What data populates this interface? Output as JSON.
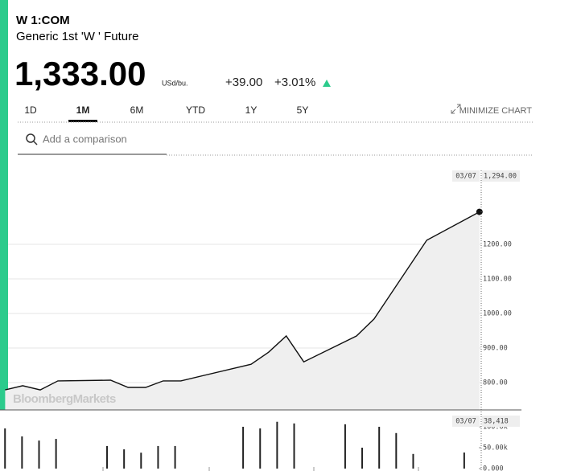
{
  "header": {
    "ticker": "W 1:COM",
    "name": "Generic 1st 'W ' Future",
    "price": "1,333.00",
    "unit": "USd/bu.",
    "change": "+39.00",
    "change_pct": "+3.01%"
  },
  "tabs": [
    "1D",
    "1M",
    "6M",
    "YTD",
    "1Y",
    "5Y"
  ],
  "active_tab": "1M",
  "minimize": "MINIMIZE CHART",
  "search_placeholder": "Add a comparison",
  "watermark": "BloombergMarkets",
  "chart_data": [
    {
      "type": "line",
      "color": "#111111",
      "fill": "#efefef",
      "grid": true,
      "x": [
        0,
        1,
        2,
        3,
        6,
        7,
        8,
        9,
        10,
        14,
        15,
        16,
        17,
        20,
        21,
        24,
        27
      ],
      "values": [
        779,
        791,
        779,
        805,
        807,
        786,
        786,
        805,
        805,
        853,
        888,
        935,
        860,
        935,
        984,
        1212,
        1294
      ],
      "xlim": [
        -0.2,
        27.1
      ],
      "ylim": [
        721,
        1414
      ],
      "yticks": [
        {
          "value": 800,
          "label": "800.00"
        },
        {
          "value": 900,
          "label": "900.00"
        },
        {
          "value": 1000,
          "label": "1000.00"
        },
        {
          "value": 1100,
          "label": "1100.00"
        },
        {
          "value": 1200,
          "label": "1200.00"
        }
      ],
      "cursor_date": "03/07",
      "cursor_label": "1,294.00"
    },
    {
      "type": "bar",
      "color": "#222222",
      "x": [
        0,
        1,
        2,
        3,
        6,
        7,
        8,
        9,
        10,
        14,
        15,
        16,
        17,
        20,
        21,
        22,
        23,
        24,
        27
      ],
      "values": [
        96000,
        77000,
        67000,
        71000,
        54000,
        46000,
        38000,
        54000,
        54000,
        100000,
        96000,
        112000,
        108000,
        106000,
        50000,
        100000,
        85000,
        35000,
        38418
      ],
      "xlim": [
        -0.2,
        28.0
      ],
      "ylim": [
        -5800,
        136500
      ],
      "yticks": [
        {
          "value": 0,
          "label": "0.000"
        },
        {
          "value": 50000,
          "label": "50.00k"
        },
        {
          "value": 100000,
          "label": "100.0k"
        }
      ],
      "cursor_date": "03/07",
      "cursor_label": "38,418"
    }
  ]
}
